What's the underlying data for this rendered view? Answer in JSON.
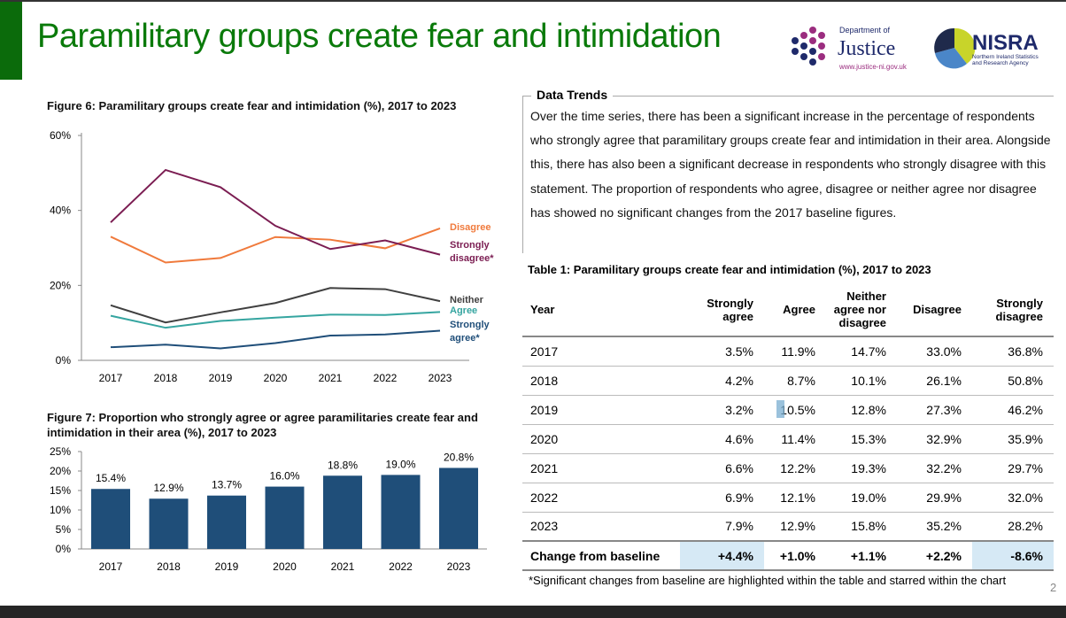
{
  "header": {
    "title": "Paramilitary groups create fear and intimidation"
  },
  "logos": {
    "doj_top": "Department of",
    "doj_main": "Justice",
    "doj_url": "www.justice-ni.gov.uk",
    "nisra_main": "NISRA",
    "nisra_sub1": "Northern Ireland Statistics",
    "nisra_sub2": "and Research Agency"
  },
  "page_number": "2",
  "trends": {
    "heading": "Data Trends",
    "text": "Over the time series, there has been a significant increase in the percentage of respondents who strongly agree that paramilitary groups create fear and intimidation in their area. Alongside this, there has also been a significant decrease in respondents who strongly disagree with this statement. The proportion of respondents who agree, disagree or neither agree nor disagree has showed no significant changes from the 2017 baseline figures."
  },
  "table": {
    "title": "Table 1: Paramilitary groups create fear and intimidation (%), 2017 to 2023",
    "headers": [
      "Year",
      "Strongly agree",
      "Agree",
      "Neither agree nor disagree",
      "Disagree",
      "Strongly disagree"
    ],
    "rows": [
      [
        "2017",
        "3.5%",
        "11.9%",
        "14.7%",
        "33.0%",
        "36.8%"
      ],
      [
        "2018",
        "4.2%",
        "8.7%",
        "10.1%",
        "26.1%",
        "50.8%"
      ],
      [
        "2019",
        "3.2%",
        "10.5%",
        "12.8%",
        "27.3%",
        "46.2%"
      ],
      [
        "2020",
        "4.6%",
        "11.4%",
        "15.3%",
        "32.9%",
        "35.9%"
      ],
      [
        "2021",
        "6.6%",
        "12.2%",
        "19.3%",
        "32.2%",
        "29.7%"
      ],
      [
        "2022",
        "6.9%",
        "12.1%",
        "19.0%",
        "29.9%",
        "32.0%"
      ],
      [
        "2023",
        "7.9%",
        "12.9%",
        "15.8%",
        "35.2%",
        "28.2%"
      ]
    ],
    "change": [
      "Change from baseline",
      "+4.4%",
      "+1.0%",
      "+1.1%",
      "+2.2%",
      "-8.6%"
    ],
    "highlight_color": "#d6e9f5",
    "note": "*Significant changes from baseline are highlighted within the table and starred within the chart"
  },
  "chart_data": [
    {
      "type": "line",
      "title": "Figure 6: Paramilitary groups create fear and intimidation (%), 2017 to 2023",
      "x": [
        "2017",
        "2018",
        "2019",
        "2020",
        "2021",
        "2022",
        "2023"
      ],
      "ylim": [
        0,
        60
      ],
      "yticks": [
        "0%",
        "20%",
        "40%",
        "60%"
      ],
      "legend": "right (end-of-line labels)",
      "series": [
        {
          "name": "Disagree",
          "color": "#f07a3c",
          "values": [
            33.0,
            26.1,
            27.3,
            32.9,
            32.2,
            29.9,
            35.2
          ]
        },
        {
          "name": "Strongly disagree*",
          "color": "#7b1d52",
          "values": [
            36.8,
            50.8,
            46.2,
            35.9,
            29.7,
            32.0,
            28.2
          ]
        },
        {
          "name": "Neither",
          "color": "#404040",
          "values": [
            14.7,
            10.1,
            12.8,
            15.3,
            19.3,
            19.0,
            15.8
          ]
        },
        {
          "name": "Agree",
          "color": "#35a5a0",
          "values": [
            11.9,
            8.7,
            10.5,
            11.4,
            12.2,
            12.1,
            12.9
          ]
        },
        {
          "name": "Strongly agree*",
          "color": "#1f4e79",
          "values": [
            3.5,
            4.2,
            3.2,
            4.6,
            6.6,
            6.9,
            7.9
          ]
        }
      ]
    },
    {
      "type": "bar",
      "title": "Figure 7: Proportion who strongly agree or agree paramilitaries create fear and intimidation in their area (%), 2017 to 2023",
      "categories": [
        "2017",
        "2018",
        "2019",
        "2020",
        "2021",
        "2022",
        "2023"
      ],
      "values": [
        15.4,
        12.9,
        13.7,
        16.0,
        18.8,
        19.0,
        20.8
      ],
      "labels": [
        "15.4%",
        "12.9%",
        "13.7%",
        "16.0%",
        "18.8%",
        "19.0%",
        "20.8%"
      ],
      "ylim": [
        0,
        25
      ],
      "yticks": [
        "0%",
        "5%",
        "10%",
        "15%",
        "20%",
        "25%"
      ],
      "color": "#1f4e79"
    }
  ]
}
